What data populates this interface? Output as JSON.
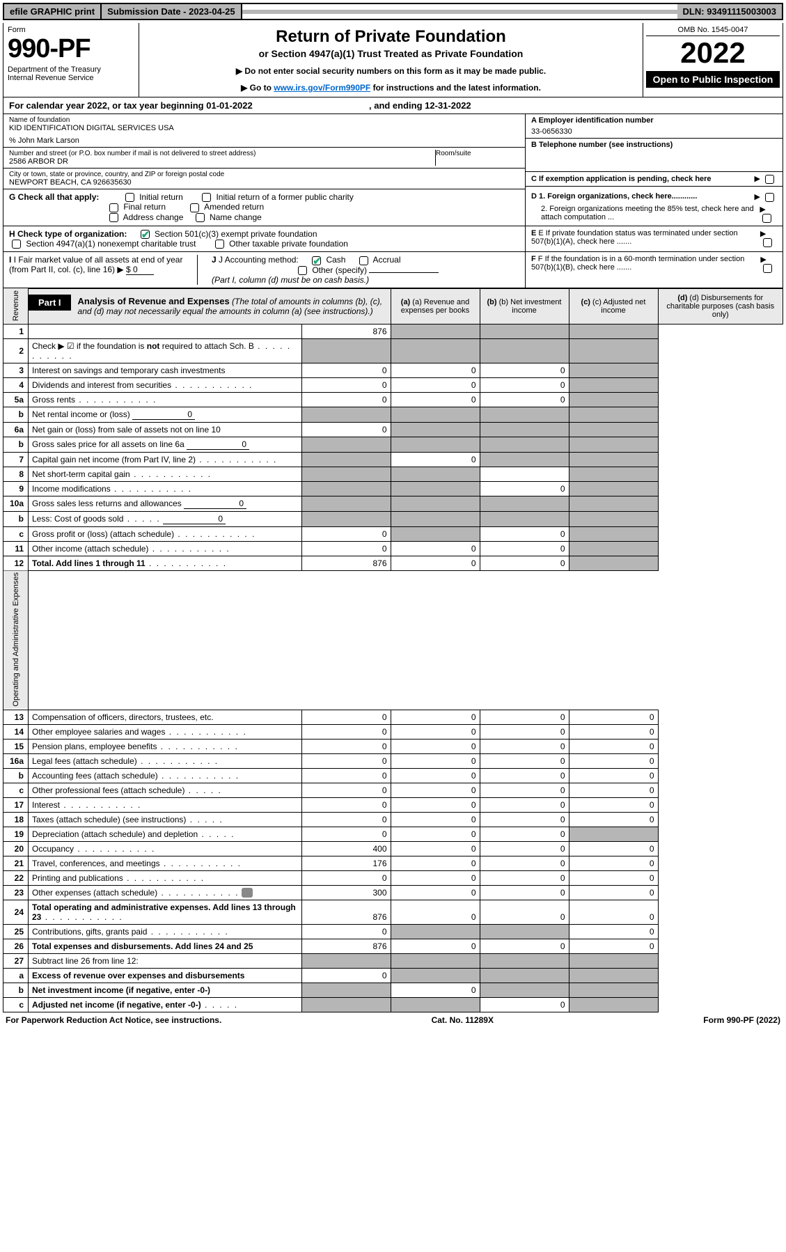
{
  "topbar": {
    "efile": "efile GRAPHIC print",
    "sub_label": "Submission Date - ",
    "sub_date": "2023-04-25",
    "dln_label": "DLN: ",
    "dln": "93491115003003"
  },
  "header": {
    "form_label": "Form",
    "form_num": "990-PF",
    "dept": "Department of the Treasury",
    "irs": "Internal Revenue Service",
    "title": "Return of Private Foundation",
    "subtitle": "or Section 4947(a)(1) Trust Treated as Private Foundation",
    "instr1": "▶ Do not enter social security numbers on this form as it may be made public.",
    "instr2_pre": "▶ Go to ",
    "instr2_link": "www.irs.gov/Form990PF",
    "instr2_post": " for instructions and the latest information.",
    "omb": "OMB No. 1545-0047",
    "year": "2022",
    "open": "Open to Public Inspection"
  },
  "cal_year": {
    "text_pre": "For calendar year 2022, or tax year beginning ",
    "begin": "01-01-2022",
    "mid": " , and ending ",
    "end": "12-31-2022"
  },
  "id": {
    "name_lbl": "Name of foundation",
    "name": "KID IDENTIFICATION DIGITAL SERVICES USA",
    "care_of": "% John Mark Larson",
    "addr_lbl": "Number and street (or P.O. box number if mail is not delivered to street address)",
    "addr": "2586 ARBOR DR",
    "room_lbl": "Room/suite",
    "city_lbl": "City or town, state or province, country, and ZIP or foreign postal code",
    "city": "NEWPORT BEACH, CA  926635630",
    "a_lbl": "A Employer identification number",
    "ein": "33-0656330",
    "b_lbl": "B Telephone number (see instructions)",
    "c_lbl": "C If exemption application is pending, check here",
    "d1": "D 1. Foreign organizations, check here............",
    "d2": "2. Foreign organizations meeting the 85% test, check here and attach computation ...",
    "e_lbl": "E  If private foundation status was terminated under section 507(b)(1)(A), check here .......",
    "f_lbl": "F  If the foundation is in a 60-month termination under section 507(b)(1)(B), check here ......."
  },
  "checks": {
    "g_lbl": "G Check all that apply:",
    "g_opts": [
      "Initial return",
      "Initial return of a former public charity",
      "Final return",
      "Amended return",
      "Address change",
      "Name change"
    ],
    "h_lbl": "H Check type of organization:",
    "h1": "Section 501(c)(3) exempt private foundation",
    "h2": "Section 4947(a)(1) nonexempt charitable trust",
    "h3": "Other taxable private foundation",
    "i_lbl": "I Fair market value of all assets at end of year (from Part II, col. (c), line 16) ▶",
    "i_val": "$  0",
    "j_lbl": "J Accounting method:",
    "j_cash": "Cash",
    "j_accr": "Accrual",
    "j_other": "Other (specify)",
    "j_note": "(Part I, column (d) must be on cash basis.)"
  },
  "part1": {
    "tag": "Part I",
    "title": "Analysis of Revenue and Expenses",
    "note": " (The total of amounts in columns (b), (c), and (d) may not necessarily equal the amounts in column (a) (see instructions).)",
    "cols": {
      "a": "(a) Revenue and expenses per books",
      "b": "(b) Net investment income",
      "c": "(c) Adjusted net income",
      "d": "(d) Disbursements for charitable purposes (cash basis only)"
    }
  },
  "side": {
    "rev": "Revenue",
    "exp": "Operating and Administrative Expenses"
  },
  "rows": [
    {
      "n": "1",
      "d": "",
      "a": "876",
      "b": "",
      "c": "",
      "shade_b": true,
      "shade_c": true,
      "shade_d": true
    },
    {
      "n": "2",
      "d": "Check ▶ ☑ if the foundation is not required to attach Sch. B",
      "dots": true,
      "shade_a": true,
      "shade_b": true,
      "shade_c": true,
      "shade_d": true,
      "bold_not": true
    },
    {
      "n": "3",
      "d": "Interest on savings and temporary cash investments",
      "a": "0",
      "b": "0",
      "c": "0",
      "shade_d": true
    },
    {
      "n": "4",
      "d": "Dividends and interest from securities",
      "dots": true,
      "a": "0",
      "b": "0",
      "c": "0",
      "shade_d": true
    },
    {
      "n": "5a",
      "d": "Gross rents",
      "dots": true,
      "a": "0",
      "b": "0",
      "c": "0",
      "shade_d": true
    },
    {
      "n": "b",
      "d": "Net rental income or (loss)",
      "fill": "0",
      "shade_a": true,
      "shade_b": true,
      "shade_c": true,
      "shade_d": true
    },
    {
      "n": "6a",
      "d": "Net gain or (loss) from sale of assets not on line 10",
      "a": "0",
      "shade_b": true,
      "shade_c": true,
      "shade_d": true
    },
    {
      "n": "b",
      "d": "Gross sales price for all assets on line 6a",
      "fill": "0",
      "shade_a": true,
      "shade_b": true,
      "shade_c": true,
      "shade_d": true
    },
    {
      "n": "7",
      "d": "Capital gain net income (from Part IV, line 2)",
      "dots": true,
      "shade_a": true,
      "b": "0",
      "shade_c": true,
      "shade_d": true
    },
    {
      "n": "8",
      "d": "Net short-term capital gain",
      "dots": true,
      "shade_a": true,
      "shade_b": true,
      "shade_d": true
    },
    {
      "n": "9",
      "d": "Income modifications",
      "dots": true,
      "shade_a": true,
      "shade_b": true,
      "c": "0",
      "shade_d": true
    },
    {
      "n": "10a",
      "d": "Gross sales less returns and allowances",
      "fill": "0",
      "shade_a": true,
      "shade_b": true,
      "shade_c": true,
      "shade_d": true
    },
    {
      "n": "b",
      "d": "Less: Cost of goods sold",
      "dots_s": true,
      "fill": "0",
      "shade_a": true,
      "shade_b": true,
      "shade_c": true,
      "shade_d": true
    },
    {
      "n": "c",
      "d": "Gross profit or (loss) (attach schedule)",
      "dots": true,
      "a": "0",
      "shade_b": true,
      "c": "0",
      "shade_d": true
    },
    {
      "n": "11",
      "d": "Other income (attach schedule)",
      "dots": true,
      "a": "0",
      "b": "0",
      "c": "0",
      "shade_d": true
    },
    {
      "n": "12",
      "d": "Total. Add lines 1 through 11",
      "dots": true,
      "bold": true,
      "a": "876",
      "b": "0",
      "c": "0",
      "shade_d": true
    },
    {
      "n": "13",
      "d": "Compensation of officers, directors, trustees, etc.",
      "a": "0",
      "b": "0",
      "c": "0",
      "dd": "0"
    },
    {
      "n": "14",
      "d": "Other employee salaries and wages",
      "dots": true,
      "a": "0",
      "b": "0",
      "c": "0",
      "dd": "0"
    },
    {
      "n": "15",
      "d": "Pension plans, employee benefits",
      "dots": true,
      "a": "0",
      "b": "0",
      "c": "0",
      "dd": "0"
    },
    {
      "n": "16a",
      "d": "Legal fees (attach schedule)",
      "dots": true,
      "a": "0",
      "b": "0",
      "c": "0",
      "dd": "0"
    },
    {
      "n": "b",
      "d": "Accounting fees (attach schedule)",
      "dots": true,
      "a": "0",
      "b": "0",
      "c": "0",
      "dd": "0"
    },
    {
      "n": "c",
      "d": "Other professional fees (attach schedule)",
      "dots_s": true,
      "a": "0",
      "b": "0",
      "c": "0",
      "dd": "0"
    },
    {
      "n": "17",
      "d": "Interest",
      "dots": true,
      "a": "0",
      "b": "0",
      "c": "0",
      "dd": "0"
    },
    {
      "n": "18",
      "d": "Taxes (attach schedule) (see instructions)",
      "dots_s": true,
      "a": "0",
      "b": "0",
      "c": "0",
      "dd": "0"
    },
    {
      "n": "19",
      "d": "Depreciation (attach schedule) and depletion",
      "dots_s": true,
      "a": "0",
      "b": "0",
      "c": "0",
      "shade_d": true
    },
    {
      "n": "20",
      "d": "Occupancy",
      "dots": true,
      "a": "400",
      "b": "0",
      "c": "0",
      "dd": "0"
    },
    {
      "n": "21",
      "d": "Travel, conferences, and meetings",
      "dots": true,
      "a": "176",
      "b": "0",
      "c": "0",
      "dd": "0"
    },
    {
      "n": "22",
      "d": "Printing and publications",
      "dots": true,
      "a": "0",
      "b": "0",
      "c": "0",
      "dd": "0"
    },
    {
      "n": "23",
      "d": "Other expenses (attach schedule)",
      "dots": true,
      "icon": true,
      "a": "300",
      "b": "0",
      "c": "0",
      "dd": "0"
    },
    {
      "n": "24",
      "d": "Total operating and administrative expenses. Add lines 13 through 23",
      "dots": true,
      "bold": true,
      "a": "876",
      "b": "0",
      "c": "0",
      "dd": "0"
    },
    {
      "n": "25",
      "d": "Contributions, gifts, grants paid",
      "dots": true,
      "a": "0",
      "shade_b": true,
      "shade_c": true,
      "dd": "0"
    },
    {
      "n": "26",
      "d": "Total expenses and disbursements. Add lines 24 and 25",
      "bold": true,
      "a": "876",
      "b": "0",
      "c": "0",
      "dd": "0"
    },
    {
      "n": "27",
      "d": "Subtract line 26 from line 12:",
      "shade_a": true,
      "shade_b": true,
      "shade_c": true,
      "shade_d": true
    },
    {
      "n": "a",
      "d": "Excess of revenue over expenses and disbursements",
      "bold": true,
      "a": "0",
      "shade_b": true,
      "shade_c": true,
      "shade_d": true
    },
    {
      "n": "b",
      "d": "Net investment income (if negative, enter -0-)",
      "bold": true,
      "shade_a": true,
      "b": "0",
      "shade_c": true,
      "shade_d": true
    },
    {
      "n": "c",
      "d": "Adjusted net income (if negative, enter -0-)",
      "dots_s": true,
      "bold": true,
      "shade_a": true,
      "shade_b": true,
      "c": "0",
      "shade_d": true
    }
  ],
  "footer": {
    "left": "For Paperwork Reduction Act Notice, see instructions.",
    "mid": "Cat. No. 11289X",
    "right": "Form 990-PF (2022)"
  },
  "colors": {
    "grey_bg": "#b6b6b6",
    "light_grey": "#e9e9e9",
    "link": "#0066cc",
    "check": "#2a7"
  }
}
